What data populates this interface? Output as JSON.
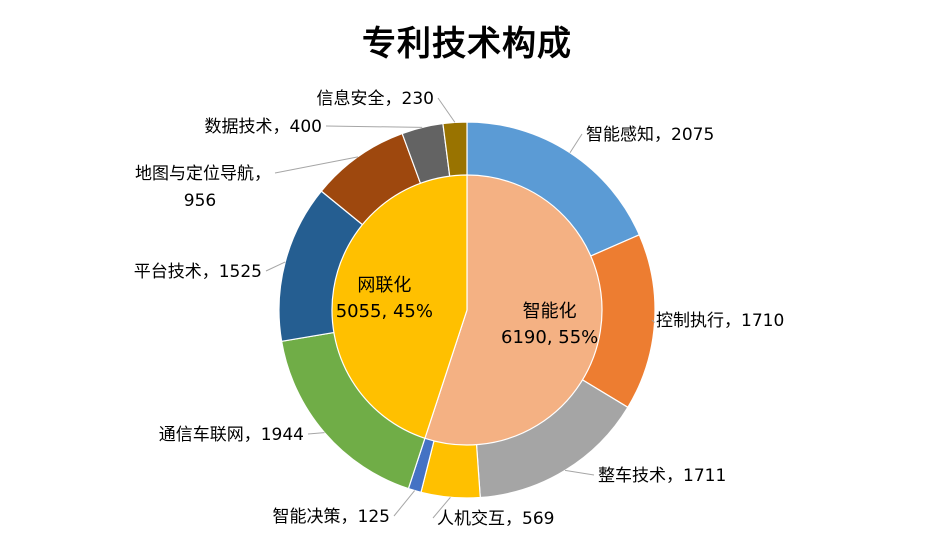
{
  "chart_data": {
    "type": "pie",
    "title": "专利技术构成",
    "inner": [
      {
        "name": "智能化",
        "value": 6190,
        "pct": "55%",
        "color": "#F4B183"
      },
      {
        "name": "网联化",
        "value": 5055,
        "pct": "45%",
        "color": "#FFC000"
      }
    ],
    "outer": [
      {
        "name": "智能感知",
        "value": 2075,
        "color": "#5B9BD5",
        "label": "智能感知，2075"
      },
      {
        "name": "控制执行",
        "value": 1710,
        "color": "#ED7D31",
        "label": "控制执行，1710"
      },
      {
        "name": "整车技术",
        "value": 1711,
        "color": "#A5A5A5",
        "label": "整车技术，1711"
      },
      {
        "name": "人机交互",
        "value": 569,
        "color": "#FFC000",
        "label": "人机交互，569"
      },
      {
        "name": "智能决策",
        "value": 125,
        "color": "#4472C4",
        "label": "智能决策，125"
      },
      {
        "name": "通信车联网",
        "value": 1944,
        "color": "#70AD47",
        "label": "通信车联网，1944"
      },
      {
        "name": "平台技术",
        "value": 1525,
        "color": "#255E91",
        "label": "平台技术，1525"
      },
      {
        "name": "地图与定位导航",
        "value": 956,
        "color": "#9E480E",
        "label": [
          "地图与定位导航，",
          "956"
        ]
      },
      {
        "name": "数据技术",
        "value": 400,
        "color": "#636363",
        "label": "数据技术，400"
      },
      {
        "name": "信息安全",
        "value": 230,
        "color": "#997300",
        "label": "信息安全，230"
      }
    ]
  }
}
